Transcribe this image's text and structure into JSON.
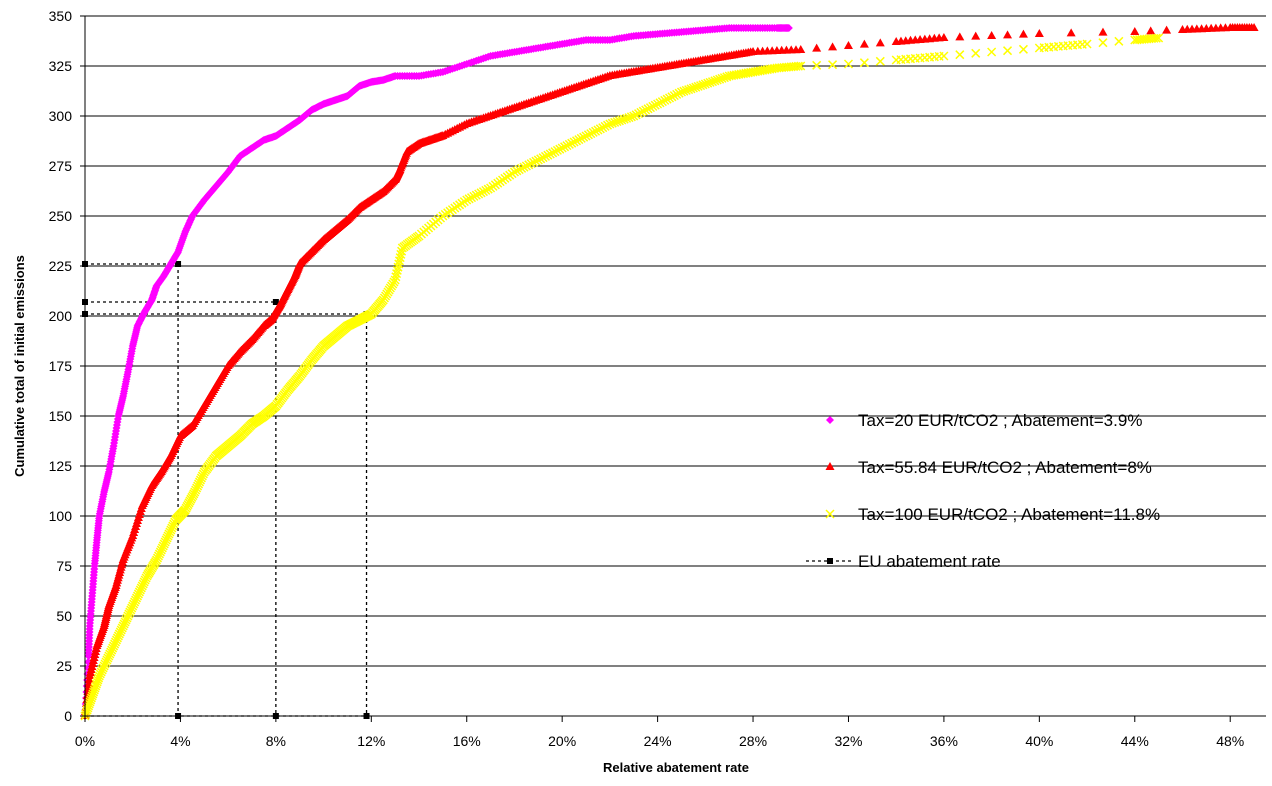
{
  "chart_data": {
    "type": "scatter",
    "title": "",
    "xlabel": "Relative abatement rate",
    "ylabel": "Cumulative total of initial emissions",
    "xlim": [
      0,
      0.495
    ],
    "ylim": [
      0,
      350
    ],
    "x_ticks": [
      0,
      0.04,
      0.08,
      0.12,
      0.16,
      0.2,
      0.24,
      0.28,
      0.32,
      0.36,
      0.4,
      0.44,
      0.48
    ],
    "x_tick_labels": [
      "0%",
      "4%",
      "8%",
      "12%",
      "16%",
      "20%",
      "24%",
      "28%",
      "32%",
      "36%",
      "40%",
      "44%",
      "48%"
    ],
    "y_ticks": [
      0,
      25,
      50,
      75,
      100,
      125,
      150,
      175,
      200,
      225,
      250,
      275,
      300,
      325,
      350
    ],
    "y_tick_labels": [
      "0",
      "25",
      "50",
      "75",
      "100",
      "125",
      "150",
      "175",
      "200",
      "225",
      "250",
      "275",
      "300",
      "325",
      "350"
    ],
    "grid": "horizontal",
    "legend_position": "right",
    "series": [
      {
        "name": "Tax=20 EUR/tCO2 ; Abatement=3.9%",
        "color": "#FF00FF",
        "marker": "diamond",
        "x": [
          0,
          0.0015,
          0.002,
          0.003,
          0.004,
          0.005,
          0.006,
          0.008,
          0.01,
          0.012,
          0.014,
          0.016,
          0.018,
          0.02,
          0.022,
          0.025,
          0.028,
          0.03,
          0.033,
          0.036,
          0.039,
          0.042,
          0.045,
          0.05,
          0.055,
          0.06,
          0.065,
          0.07,
          0.075,
          0.08,
          0.085,
          0.09,
          0.095,
          0.1,
          0.105,
          0.11,
          0.115,
          0.12,
          0.125,
          0.13,
          0.14,
          0.15,
          0.16,
          0.17,
          0.18,
          0.19,
          0.2,
          0.21,
          0.22,
          0.23,
          0.24,
          0.25,
          0.26,
          0.27,
          0.28,
          0.29,
          0.295
        ],
        "y": [
          0,
          30,
          45,
          60,
          75,
          88,
          100,
          112,
          122,
          135,
          150,
          160,
          172,
          185,
          195,
          202,
          208,
          215,
          220,
          226,
          232,
          242,
          250,
          258,
          265,
          272,
          280,
          284,
          288,
          290,
          294,
          298,
          303,
          306,
          308,
          310,
          315,
          317,
          318,
          320,
          320,
          322,
          326,
          330,
          332,
          334,
          336,
          338,
          338,
          340,
          341,
          342,
          343,
          344,
          344,
          344,
          344
        ]
      },
      {
        "name": "Tax=55.84 EUR/tCO2 ; Abatement=8%",
        "color": "#FF0000",
        "marker": "triangle",
        "x": [
          0,
          0.002,
          0.005,
          0.008,
          0.01,
          0.013,
          0.016,
          0.02,
          0.024,
          0.028,
          0.032,
          0.036,
          0.04,
          0.045,
          0.05,
          0.055,
          0.06,
          0.065,
          0.07,
          0.075,
          0.078,
          0.08,
          0.082,
          0.085,
          0.088,
          0.09,
          0.095,
          0.1,
          0.105,
          0.11,
          0.115,
          0.12,
          0.125,
          0.13,
          0.132,
          0.135,
          0.14,
          0.145,
          0.15,
          0.16,
          0.17,
          0.18,
          0.19,
          0.2,
          0.21,
          0.22,
          0.23,
          0.24,
          0.25,
          0.26,
          0.27,
          0.28,
          0.3,
          0.32,
          0.34,
          0.36,
          0.38,
          0.4,
          0.44,
          0.46,
          0.48,
          0.49
        ],
        "y": [
          0,
          20,
          35,
          45,
          55,
          65,
          78,
          90,
          105,
          115,
          122,
          130,
          140,
          145,
          155,
          165,
          175,
          182,
          188,
          195,
          198,
          202,
          206,
          213,
          220,
          226,
          232,
          238,
          243,
          248,
          254,
          258,
          262,
          268,
          273,
          282,
          286,
          288,
          290,
          296,
          300,
          304,
          308,
          312,
          316,
          320,
          322,
          324,
          326,
          328,
          330,
          332,
          333,
          335,
          337,
          339,
          340,
          341,
          342,
          343,
          344,
          344
        ]
      },
      {
        "name": "Tax=100 EUR/tCO2 ; Abatement=11.8%",
        "color": "#FFFF00",
        "marker": "x",
        "x": [
          0,
          0.003,
          0.006,
          0.01,
          0.014,
          0.018,
          0.022,
          0.026,
          0.03,
          0.034,
          0.038,
          0.042,
          0.046,
          0.05,
          0.055,
          0.06,
          0.065,
          0.07,
          0.075,
          0.08,
          0.085,
          0.09,
          0.095,
          0.1,
          0.105,
          0.11,
          0.115,
          0.12,
          0.125,
          0.13,
          0.133,
          0.14,
          0.15,
          0.16,
          0.17,
          0.18,
          0.19,
          0.2,
          0.21,
          0.22,
          0.23,
          0.24,
          0.25,
          0.26,
          0.27,
          0.28,
          0.29,
          0.3,
          0.32,
          0.34,
          0.36,
          0.38,
          0.4,
          0.42,
          0.44,
          0.45
        ],
        "y": [
          0,
          10,
          20,
          30,
          40,
          50,
          60,
          70,
          78,
          88,
          98,
          103,
          112,
          122,
          130,
          135,
          140,
          146,
          150,
          155,
          163,
          170,
          178,
          185,
          190,
          195,
          198,
          201,
          208,
          218,
          234,
          240,
          250,
          258,
          264,
          272,
          278,
          284,
          290,
          296,
          300,
          306,
          312,
          316,
          320,
          322,
          324,
          325,
          326,
          328,
          330,
          332,
          334,
          336,
          338,
          339
        ]
      },
      {
        "name": "EU abatement rate",
        "color": "#000000",
        "marker": "square",
        "line": "dotted",
        "points": [
          {
            "x": 0.039,
            "y": 226
          },
          {
            "x": 0.08,
            "y": 207
          },
          {
            "x": 0.118,
            "y": 201
          }
        ]
      }
    ]
  }
}
